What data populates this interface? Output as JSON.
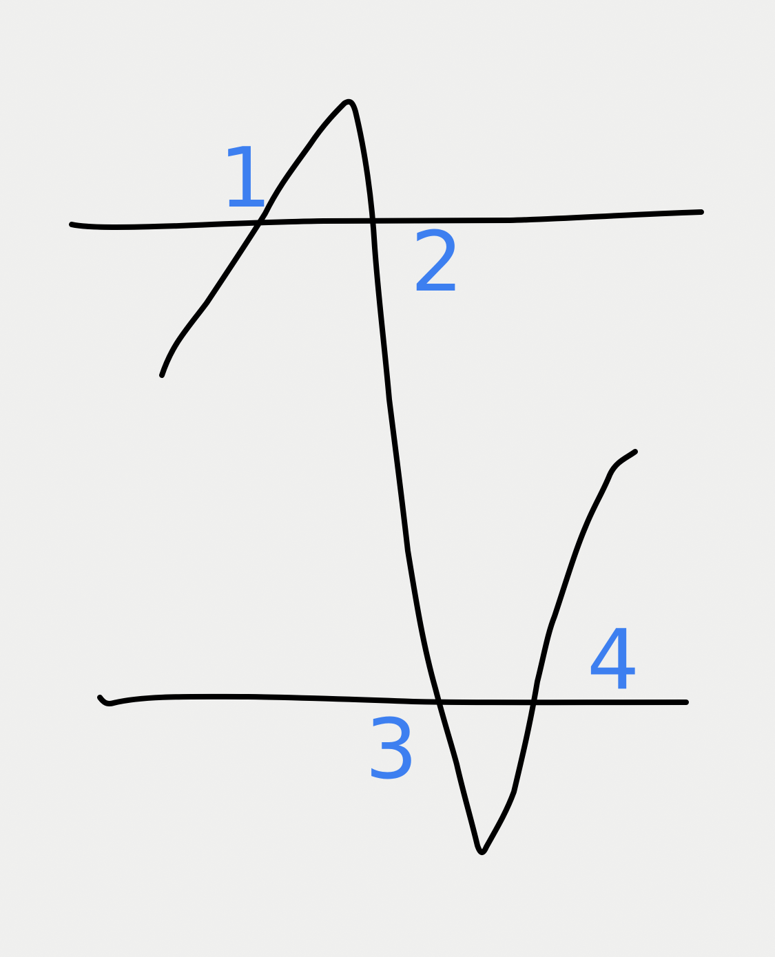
{
  "diagram": {
    "ink_color": "#000000",
    "marker_color": "#3d7ff0",
    "paper_color": "#f1f1f0",
    "markers": [
      {
        "label": "1"
      },
      {
        "label": "2"
      },
      {
        "label": "3"
      },
      {
        "label": "4"
      }
    ]
  }
}
